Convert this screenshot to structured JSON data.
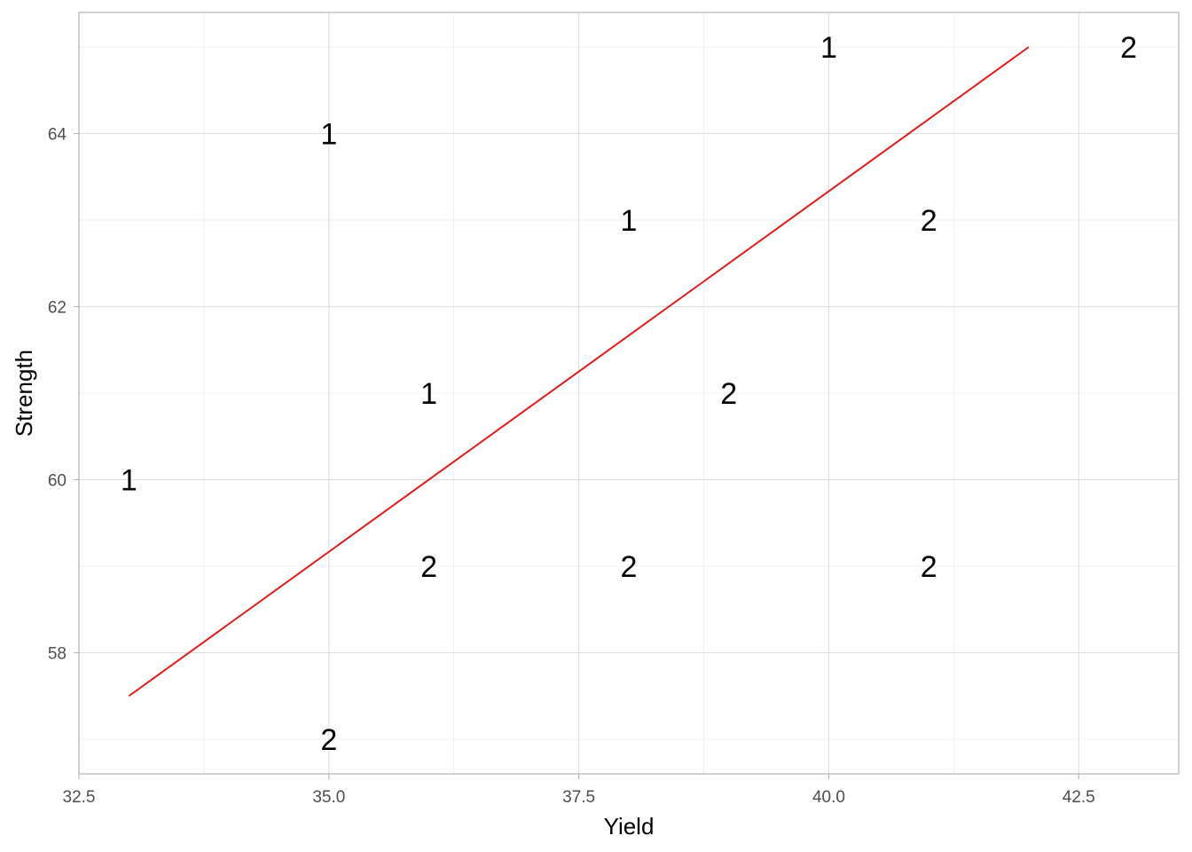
{
  "chart_data": {
    "type": "scatter",
    "xlabel": "Yield",
    "ylabel": "Strength",
    "xlim": [
      32.5,
      43.5
    ],
    "ylim": [
      56.6,
      65.4
    ],
    "x_ticks": [
      32.5,
      35.0,
      37.5,
      40.0,
      42.5
    ],
    "x_tick_labels": [
      "32.5",
      "35.0",
      "37.5",
      "40.0",
      "42.5"
    ],
    "y_ticks": [
      58,
      60,
      62,
      64
    ],
    "y_tick_labels": [
      "58",
      "60",
      "62",
      "64"
    ],
    "grid": true,
    "points": [
      {
        "x": 33,
        "y": 60,
        "label": "1"
      },
      {
        "x": 35,
        "y": 64,
        "label": "1"
      },
      {
        "x": 36,
        "y": 61,
        "label": "1"
      },
      {
        "x": 38,
        "y": 63,
        "label": "1"
      },
      {
        "x": 40,
        "y": 65,
        "label": "1"
      },
      {
        "x": 35,
        "y": 57,
        "label": "2"
      },
      {
        "x": 36,
        "y": 59,
        "label": "2"
      },
      {
        "x": 38,
        "y": 59,
        "label": "2"
      },
      {
        "x": 39,
        "y": 61,
        "label": "2"
      },
      {
        "x": 41,
        "y": 59,
        "label": "2"
      },
      {
        "x": 41,
        "y": 63,
        "label": "2"
      },
      {
        "x": 43,
        "y": 65,
        "label": "2"
      }
    ],
    "fit_line": {
      "x": [
        33,
        42
      ],
      "y": [
        57.5,
        65
      ],
      "color": "#e31a1c"
    }
  }
}
